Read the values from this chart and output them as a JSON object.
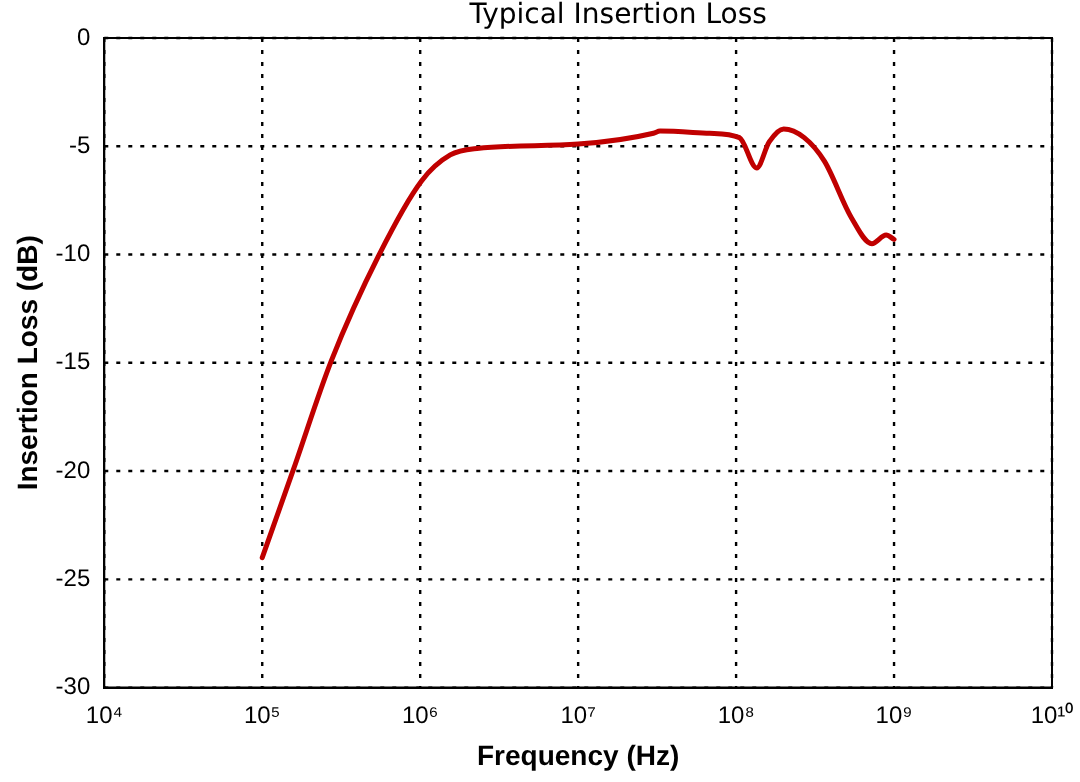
{
  "chart_data": {
    "type": "line",
    "title": "Typical Insertion Loss",
    "xlabel": "Frequency (Hz)",
    "ylabel": "Insertion Loss (dB)",
    "log": "x",
    "xlim": [
      10000,
      10000000000
    ],
    "xticks": [
      {
        "value": 10000,
        "label": "10⁴"
      },
      {
        "value": 100000,
        "label": "10⁵"
      },
      {
        "value": 1000000,
        "label": "10⁶"
      },
      {
        "value": 10000000,
        "label": "10⁷"
      },
      {
        "value": 100000000,
        "label": "10⁸"
      },
      {
        "value": 1000000000,
        "label": "10⁹"
      },
      {
        "value": 10000000000,
        "label": "10¹⁰"
      }
    ],
    "ylim": [
      -30,
      0
    ],
    "yticks": [
      -30,
      -25,
      -20,
      -15,
      -10,
      -5,
      0
    ],
    "grid": true,
    "legend": false,
    "marker": "none",
    "line_style": "solid",
    "series": [
      {
        "color": "#c00000",
        "x": [
          100000,
          158000,
          274000,
          550000,
          1020000,
          1550000,
          2290000,
          10000000,
          30000000,
          33000000,
          68000000,
          105000000,
          135000000,
          162000000,
          200000000,
          270000000,
          363000000,
          537000000,
          724000000,
          891000000,
          1000000000
        ],
        "values": [
          -24,
          -19.9,
          -14.9,
          -10,
          -6.6,
          -5.4,
          -5.1,
          -4.9,
          -4.4,
          -4.3,
          -4.4,
          -4.6,
          -6,
          -4.8,
          -4.2,
          -4.6,
          -5.7,
          -8.3,
          -9.5,
          -9.1,
          -9.3
        ]
      }
    ]
  }
}
